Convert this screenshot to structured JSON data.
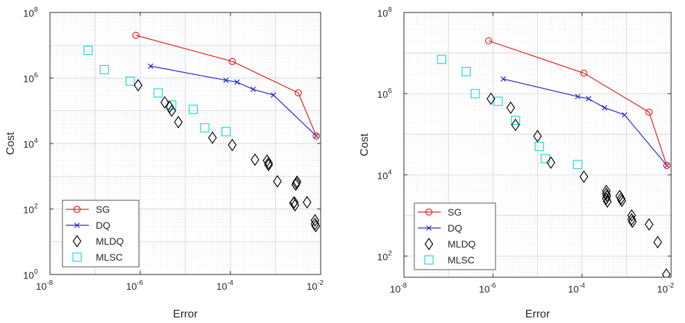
{
  "chart_data": [
    {
      "type": "scatter",
      "xlabel": "Error",
      "ylabel": "Cost",
      "xscale": "log",
      "yscale": "log",
      "xlim": [
        1e-08,
        0.01
      ],
      "ylim": [
        1,
        100000000.0
      ],
      "x_ticks": [
        {
          "base": "10",
          "exp": "-8"
        },
        {
          "base": "10",
          "exp": "-6"
        },
        {
          "base": "10",
          "exp": "-4"
        },
        {
          "base": "10",
          "exp": "-2"
        }
      ],
      "y_ticks": [
        {
          "base": "10",
          "exp": "0"
        },
        {
          "base": "10",
          "exp": "2"
        },
        {
          "base": "10",
          "exp": "4"
        },
        {
          "base": "10",
          "exp": "6"
        },
        {
          "base": "10",
          "exp": "8"
        }
      ],
      "grid": true,
      "legend_position": "bottom-left",
      "series": [
        {
          "name": "SG",
          "color": "#e31a1c",
          "marker": "circle",
          "line": true,
          "x": [
            8e-07,
            0.00011,
            0.0032,
            0.008
          ],
          "y": [
            20000000.0,
            3200000.0,
            350000.0,
            17000.0
          ]
        },
        {
          "name": "DQ",
          "color": "#1f1fd6",
          "marker": "x",
          "line": true,
          "x": [
            1.7e-06,
            8e-05,
            0.00014,
            0.00032,
            0.0009,
            0.008
          ],
          "y": [
            2300000.0,
            850000.0,
            750000.0,
            450000.0,
            300000.0,
            17000.0
          ]
        },
        {
          "name": "MLDQ",
          "color": "#000000",
          "marker": "diamond",
          "line": false,
          "x": [
            9e-07,
            3.5e-06,
            4.5e-06,
            5e-06,
            7e-06,
            4e-05,
            0.00011,
            0.00035,
            0.00065,
            0.0007,
            0.0007,
            0.0011,
            0.0025,
            0.0027,
            0.0026,
            0.0028,
            0.0029,
            0.003,
            0.005,
            0.0075,
            0.0075,
            0.0078
          ],
          "y": [
            600000.0,
            180000.0,
            130000.0,
            100000.0,
            45000.0,
            15000.0,
            9000.0,
            3200.0,
            3000.0,
            2500.0,
            2200.0,
            700,
            150,
            130,
            160,
            550,
            620,
            680,
            160,
            45,
            35,
            30
          ]
        },
        {
          "name": "MLSC",
          "color": "#1ed6d6",
          "marker": "square",
          "line": false,
          "x": [
            7e-08,
            1.6e-07,
            6e-07,
            2.5e-06,
            5e-06,
            1.5e-05,
            2.7e-05,
            8e-05
          ],
          "y": [
            7000000.0,
            1800000.0,
            800000.0,
            350000.0,
            150000.0,
            110000.0,
            30000.0,
            23000.0
          ]
        }
      ]
    },
    {
      "type": "scatter",
      "xlabel": "Error",
      "ylabel": "Cost",
      "xscale": "log",
      "yscale": "log",
      "xlim": [
        1e-08,
        0.01
      ],
      "ylim": [
        30,
        100000000.0
      ],
      "x_ticks": [
        {
          "base": "10",
          "exp": "-8"
        },
        {
          "base": "10",
          "exp": "-6"
        },
        {
          "base": "10",
          "exp": "-4"
        },
        {
          "base": "10",
          "exp": "-2"
        }
      ],
      "y_ticks": [
        {
          "base": "10",
          "exp": "2"
        },
        {
          "base": "10",
          "exp": "4"
        },
        {
          "base": "10",
          "exp": "6"
        },
        {
          "base": "10",
          "exp": "8"
        }
      ],
      "grid": true,
      "legend_position": "bottom-left",
      "series": [
        {
          "name": "SG",
          "color": "#e31a1c",
          "marker": "circle",
          "line": true,
          "x": [
            8e-07,
            0.00011,
            0.0032,
            0.008
          ],
          "y": [
            20000000.0,
            3200000.0,
            350000.0,
            17000.0
          ]
        },
        {
          "name": "DQ",
          "color": "#1f1fd6",
          "marker": "x",
          "line": true,
          "x": [
            1.7e-06,
            8e-05,
            0.00014,
            0.00032,
            0.0009,
            0.008
          ],
          "y": [
            2300000.0,
            850000.0,
            750000.0,
            450000.0,
            300000.0,
            17000.0
          ]
        },
        {
          "name": "MLDQ",
          "color": "#000000",
          "marker": "diamond",
          "line": false,
          "x": [
            9e-07,
            2.5e-06,
            3.2e-06,
            1e-05,
            2e-05,
            0.00011,
            0.00035,
            0.00035,
            0.00036,
            0.00035,
            0.00037,
            0.0007,
            0.00075,
            0.00078,
            0.0013,
            0.0013,
            0.00135,
            0.0032,
            0.005,
            0.0078
          ],
          "y": [
            750000.0,
            450000.0,
            170000.0,
            90000.0,
            20000.0,
            9000.0,
            4000.0,
            3400.0,
            3000.0,
            2600.0,
            2200.0,
            3000.0,
            2600.0,
            2300.0,
            1000.0,
            800,
            700,
            600,
            220,
            35
          ]
        },
        {
          "name": "MLSC",
          "color": "#1ed6d6",
          "marker": "square",
          "line": false,
          "x": [
            7e-08,
            2.5e-07,
            4e-07,
            1.3e-06,
            3.2e-06,
            1.1e-05,
            1.5e-05,
            8e-05
          ],
          "y": [
            7000000.0,
            3500000.0,
            1000000.0,
            650000.0,
            220000.0,
            50000.0,
            25000.0,
            18000.0
          ]
        }
      ]
    }
  ]
}
